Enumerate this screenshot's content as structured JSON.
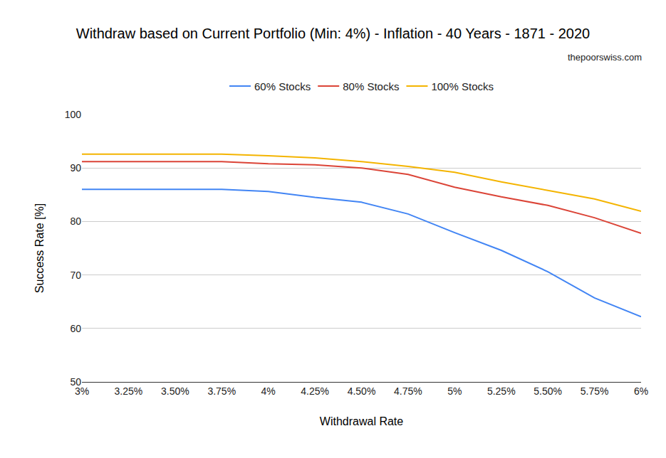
{
  "chart_data": {
    "type": "line",
    "title": "Withdraw based on Current Portfolio (Min: 4%) - Inflation - 40 Years - 1871 - 2020",
    "subtitle": "thepoorswiss.com",
    "x_label": "Withdrawal Rate",
    "y_label": "Success Rate [%]",
    "categories": [
      "3%",
      "3.25%",
      "3.50%",
      "3.75%",
      "4%",
      "4.25%",
      "4.50%",
      "4.75%",
      "5%",
      "5.25%",
      "5.50%",
      "5.75%",
      "6%"
    ],
    "series": [
      {
        "name": "60% Stocks",
        "color": "#4285f4",
        "values": [
          86.0,
          86.0,
          86.0,
          86.0,
          85.6,
          84.5,
          83.6,
          81.4,
          77.9,
          74.6,
          70.6,
          65.7,
          62.2
        ]
      },
      {
        "name": "80% Stocks",
        "color": "#db4437",
        "values": [
          91.2,
          91.2,
          91.2,
          91.2,
          90.8,
          90.6,
          90.0,
          88.8,
          86.4,
          84.6,
          83.0,
          80.7,
          77.8
        ]
      },
      {
        "name": "100% Stocks",
        "color": "#f4b400",
        "values": [
          92.6,
          92.6,
          92.6,
          92.6,
          92.3,
          91.9,
          91.2,
          90.3,
          89.2,
          87.4,
          85.8,
          84.2,
          81.9
        ]
      }
    ],
    "ylim": [
      50,
      100
    ],
    "yticks": [
      50,
      60,
      70,
      80,
      90,
      100
    ],
    "grid": true,
    "legend": "top"
  }
}
